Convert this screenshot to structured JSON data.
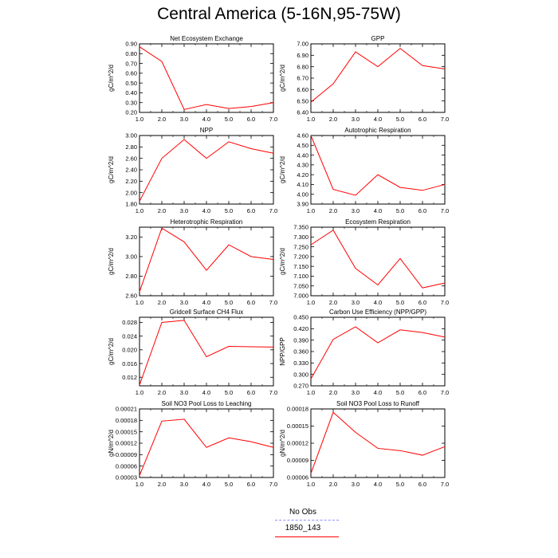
{
  "figure": {
    "title": "Central America (5-16N,95-75W)"
  },
  "legend": [
    {
      "label": "No Obs",
      "color": "#8f8fff",
      "style": "dashed"
    },
    {
      "label": "1850_143",
      "color": "#ff0000",
      "style": "solid"
    }
  ],
  "chart_data": [
    {
      "type": "line",
      "title": "Net Ecosystem Exchange",
      "xlabel": "",
      "ylabel": "gC/m^2/d",
      "x": [
        1.0,
        2.0,
        3.0,
        4.0,
        5.0,
        6.0,
        7.0
      ],
      "xticks": [
        "1.0",
        "2.0",
        "3.0",
        "4.0",
        "5.0",
        "6.0",
        "7.0"
      ],
      "xlim": [
        1.0,
        7.0
      ],
      "ylim": [
        0.2,
        0.9
      ],
      "yticks": [
        "0.20",
        "0.30",
        "0.40",
        "0.50",
        "0.60",
        "0.70",
        "0.80",
        "0.90"
      ],
      "ytick_values": [
        0.2,
        0.3,
        0.4,
        0.5,
        0.6,
        0.7,
        0.8,
        0.9
      ],
      "series": [
        {
          "values": [
            0.87,
            0.72,
            0.23,
            0.28,
            0.24,
            0.26,
            0.3
          ]
        }
      ]
    },
    {
      "type": "line",
      "title": "GPP",
      "xlabel": "",
      "ylabel": "gC/m^2/d",
      "x": [
        1.0,
        2.0,
        3.0,
        4.0,
        5.0,
        6.0,
        7.0
      ],
      "xticks": [
        "1.0",
        "2.0",
        "3.0",
        "4.0",
        "5.0",
        "6.0",
        "7.0"
      ],
      "xlim": [
        1.0,
        7.0
      ],
      "ylim": [
        6.4,
        7.0
      ],
      "yticks": [
        "6.40",
        "6.50",
        "6.60",
        "6.70",
        "6.80",
        "6.90",
        "7.00"
      ],
      "ytick_values": [
        6.4,
        6.5,
        6.6,
        6.7,
        6.8,
        6.9,
        7.0
      ],
      "series": [
        {
          "values": [
            6.49,
            6.65,
            6.93,
            6.8,
            6.96,
            6.81,
            6.78
          ]
        }
      ]
    },
    {
      "type": "line",
      "title": "NPP",
      "xlabel": "",
      "ylabel": "gC/m^2/d",
      "x": [
        1.0,
        2.0,
        3.0,
        4.0,
        5.0,
        6.0,
        7.0
      ],
      "xticks": [
        "1.0",
        "2.0",
        "3.0",
        "4.0",
        "5.0",
        "6.0",
        "7.0"
      ],
      "xlim": [
        1.0,
        7.0
      ],
      "ylim": [
        1.8,
        3.0
      ],
      "yticks": [
        "1.80",
        "2.00",
        "2.20",
        "2.40",
        "2.60",
        "2.80",
        "3.00"
      ],
      "ytick_values": [
        1.8,
        2.0,
        2.2,
        2.4,
        2.6,
        2.8,
        3.0
      ],
      "series": [
        {
          "values": [
            1.85,
            2.6,
            2.93,
            2.6,
            2.89,
            2.77,
            2.69
          ]
        }
      ]
    },
    {
      "type": "line",
      "title": "Autotrophic Respiration",
      "xlabel": "",
      "ylabel": "gC/m^2/d",
      "x": [
        1.0,
        2.0,
        3.0,
        4.0,
        5.0,
        6.0,
        7.0
      ],
      "xticks": [
        "1.0",
        "2.0",
        "3.0",
        "4.0",
        "5.0",
        "6.0",
        "7.0"
      ],
      "xlim": [
        1.0,
        7.0
      ],
      "ylim": [
        3.9,
        4.6
      ],
      "yticks": [
        "3.90",
        "4.00",
        "4.10",
        "4.20",
        "4.30",
        "4.40",
        "4.50",
        "4.60"
      ],
      "ytick_values": [
        3.9,
        4.0,
        4.1,
        4.2,
        4.3,
        4.4,
        4.5,
        4.6
      ],
      "series": [
        {
          "values": [
            4.6,
            4.05,
            3.99,
            4.2,
            4.07,
            4.04,
            4.1
          ]
        }
      ]
    },
    {
      "type": "line",
      "title": "Heterotrophic Respiration",
      "xlabel": "",
      "ylabel": "gC/m^2/d",
      "x": [
        1.0,
        2.0,
        3.0,
        4.0,
        5.0,
        6.0,
        7.0
      ],
      "xticks": [
        "1.0",
        "2.0",
        "3.0",
        "4.0",
        "5.0",
        "6.0",
        "7.0"
      ],
      "xlim": [
        1.0,
        7.0
      ],
      "ylim": [
        2.6,
        3.3
      ],
      "yticks": [
        "2.60",
        "2.80",
        "3.00",
        "3.20"
      ],
      "ytick_values": [
        2.6,
        2.8,
        3.0,
        3.2
      ],
      "series": [
        {
          "values": [
            2.64,
            3.29,
            3.15,
            2.86,
            3.12,
            3.0,
            2.97
          ]
        }
      ]
    },
    {
      "type": "line",
      "title": "Ecosystem Respiration",
      "xlabel": "",
      "ylabel": "gC/m^2/d",
      "x": [
        1.0,
        2.0,
        3.0,
        4.0,
        5.0,
        6.0,
        7.0
      ],
      "xticks": [
        "1.0",
        "2.0",
        "3.0",
        "4.0",
        "5.0",
        "6.0",
        "7.0"
      ],
      "xlim": [
        1.0,
        7.0
      ],
      "ylim": [
        7.0,
        7.35
      ],
      "yticks": [
        "7.000",
        "7.050",
        "7.100",
        "7.150",
        "7.200",
        "7.250",
        "7.300",
        "7.350"
      ],
      "ytick_values": [
        7.0,
        7.05,
        7.1,
        7.15,
        7.2,
        7.25,
        7.3,
        7.35
      ],
      "series": [
        {
          "values": [
            7.26,
            7.335,
            7.14,
            7.055,
            7.19,
            7.04,
            7.065
          ]
        }
      ]
    },
    {
      "type": "line",
      "title": "Gridcell Surface CH4 Flux",
      "xlabel": "",
      "ylabel": "gC/m^2/d",
      "x": [
        1.0,
        2.0,
        3.0,
        4.0,
        5.0,
        6.0,
        7.0
      ],
      "xticks": [
        "1.0",
        "2.0",
        "3.0",
        "4.0",
        "5.0",
        "6.0",
        "7.0"
      ],
      "xlim": [
        1.0,
        7.0
      ],
      "ylim": [
        0.0095,
        0.0295
      ],
      "yticks": [
        "0.012",
        "0.016",
        "0.020",
        "0.024",
        "0.028"
      ],
      "ytick_values": [
        0.012,
        0.016,
        0.02,
        0.024,
        0.028
      ],
      "series": [
        {
          "values": [
            0.0097,
            0.028,
            0.0286,
            0.018,
            0.021,
            0.0209,
            0.0208
          ]
        }
      ]
    },
    {
      "type": "line",
      "title": "Carbon Use Efficiency (NPP/GPP)",
      "xlabel": "",
      "ylabel": "NPP/GPP",
      "x": [
        1.0,
        2.0,
        3.0,
        4.0,
        5.0,
        6.0,
        7.0
      ],
      "xticks": [
        "1.0",
        "2.0",
        "3.0",
        "4.0",
        "5.0",
        "6.0",
        "7.0"
      ],
      "xlim": [
        1.0,
        7.0
      ],
      "ylim": [
        0.27,
        0.45
      ],
      "yticks": [
        "0.270",
        "0.300",
        "0.330",
        "0.360",
        "0.390",
        "0.420",
        "0.450"
      ],
      "ytick_values": [
        0.27,
        0.3,
        0.33,
        0.36,
        0.39,
        0.42,
        0.45
      ],
      "series": [
        {
          "values": [
            0.288,
            0.392,
            0.425,
            0.383,
            0.417,
            0.41,
            0.398
          ]
        }
      ]
    },
    {
      "type": "line",
      "title": "Soil NO3 Pool Loss to Leaching",
      "xlabel": "",
      "ylabel": "gN/m^2/d",
      "x": [
        1.0,
        2.0,
        3.0,
        4.0,
        5.0,
        6.0,
        7.0
      ],
      "xticks": [
        "1.0",
        "2.0",
        "3.0",
        "4.0",
        "5.0",
        "6.0",
        "7.0"
      ],
      "xlim": [
        1.0,
        7.0
      ],
      "ylim": [
        3e-05,
        0.00021
      ],
      "yticks": [
        "0.00003",
        "0.00006",
        "0.00009",
        "0.00012",
        "0.00015",
        "0.00018",
        "0.00021"
      ],
      "ytick_values": [
        3e-05,
        6e-05,
        9e-05,
        0.00012,
        0.00015,
        0.00018,
        0.00021
      ],
      "series": [
        {
          "values": [
            3.5e-05,
            0.000178,
            0.000183,
            0.000109,
            0.000134,
            0.000124,
            0.000109
          ]
        }
      ]
    },
    {
      "type": "line",
      "title": "Soil NO3 Pool Loss to Runoff",
      "xlabel": "",
      "ylabel": "gN/m^2/d",
      "x": [
        1.0,
        2.0,
        3.0,
        4.0,
        5.0,
        6.0,
        7.0
      ],
      "xticks": [
        "1.0",
        "2.0",
        "3.0",
        "4.0",
        "5.0",
        "6.0",
        "7.0"
      ],
      "xlim": [
        1.0,
        7.0
      ],
      "ylim": [
        6e-05,
        0.00018
      ],
      "yticks": [
        "0.00006",
        "0.00009",
        "0.00012",
        "0.00015",
        "0.00018"
      ],
      "ytick_values": [
        6e-05,
        9e-05,
        0.00012,
        0.00015,
        0.00018
      ],
      "series": [
        {
          "values": [
            6.7e-05,
            0.000174,
            0.000139,
            0.000111,
            0.000107,
            9.9e-05,
            0.000114
          ]
        }
      ]
    }
  ]
}
